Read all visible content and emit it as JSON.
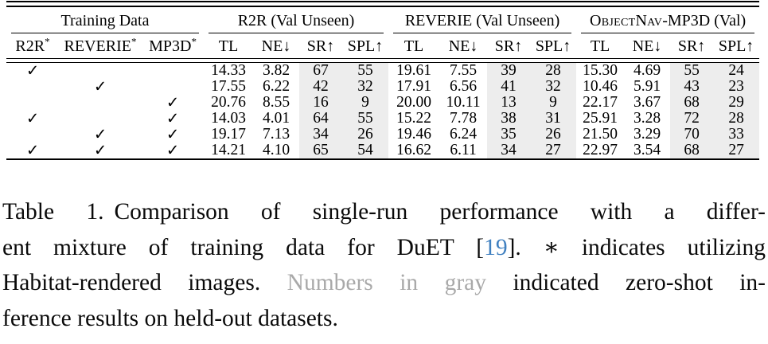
{
  "table": {
    "groups": [
      {
        "label": "Training Data",
        "col_span": 3
      },
      {
        "label": "R2R (Val Unseen)",
        "col_span": 4
      },
      {
        "label": "REVERIE (Val Unseen)",
        "col_span": 4
      },
      {
        "label_smallcaps": "ObjectNav",
        "label_rest": "-MP3D (Val)",
        "col_span": 4
      }
    ],
    "training_columns": [
      {
        "name": "R2R",
        "sup": "*"
      },
      {
        "name": "REVERIE",
        "sup": "*"
      },
      {
        "name": "MP3D",
        "sup": "*"
      }
    ],
    "metric_columns": [
      "TL",
      "NE↓",
      "SR↑",
      "SPL↑"
    ],
    "checkmark": "✓",
    "rows": [
      {
        "training": [
          true,
          false,
          false
        ],
        "sections": [
          {
            "gray": false,
            "values": [
              "14.33",
              "3.82",
              "67",
              "55"
            ]
          },
          {
            "gray": true,
            "values": [
              "19.61",
              "7.55",
              "39",
              "28"
            ]
          },
          {
            "gray": true,
            "values": [
              "15.30",
              "4.69",
              "55",
              "24"
            ]
          }
        ]
      },
      {
        "training": [
          false,
          true,
          false
        ],
        "sections": [
          {
            "gray": true,
            "values": [
              "17.55",
              "6.22",
              "42",
              "32"
            ]
          },
          {
            "gray": false,
            "values": [
              "17.91",
              "6.56",
              "41",
              "32"
            ]
          },
          {
            "gray": true,
            "values": [
              "10.46",
              "5.91",
              "43",
              "23"
            ]
          }
        ]
      },
      {
        "training": [
          false,
          false,
          true
        ],
        "sections": [
          {
            "gray": true,
            "values": [
              "20.76",
              "8.55",
              "16",
              "9"
            ]
          },
          {
            "gray": true,
            "values": [
              "20.00",
              "10.11",
              "13",
              "9"
            ]
          },
          {
            "gray": false,
            "values": [
              "22.17",
              "3.67",
              "68",
              "29"
            ]
          }
        ]
      },
      {
        "training": [
          true,
          false,
          true
        ],
        "sections": [
          {
            "gray": false,
            "values": [
              "14.03",
              "4.01",
              "64",
              "55"
            ]
          },
          {
            "gray": true,
            "values": [
              "15.22",
              "7.78",
              "38",
              "31"
            ]
          },
          {
            "gray": false,
            "values": [
              "25.91",
              "3.28",
              "72",
              "28"
            ]
          }
        ]
      },
      {
        "training": [
          false,
          true,
          true
        ],
        "sections": [
          {
            "gray": true,
            "values": [
              "19.17",
              "7.13",
              "34",
              "26"
            ]
          },
          {
            "gray": false,
            "values": [
              "19.46",
              "6.24",
              "35",
              "26"
            ]
          },
          {
            "gray": false,
            "values": [
              "21.50",
              "3.29",
              "70",
              "33"
            ]
          }
        ]
      },
      {
        "training": [
          true,
          true,
          true
        ],
        "sections": [
          {
            "gray": false,
            "values": [
              "14.21",
              "4.10",
              "65",
              "54"
            ]
          },
          {
            "gray": false,
            "values": [
              "16.62",
              "6.11",
              "34",
              "27"
            ]
          },
          {
            "gray": false,
            "values": [
              "22.97",
              "3.54",
              "68",
              "27"
            ]
          }
        ]
      }
    ]
  },
  "caption": {
    "lines": [
      [
        {
          "t": "Table 1.",
          "style": "label"
        },
        {
          "t": "Comparison of single-run performance with a differ-"
        }
      ],
      [
        {
          "t": "ent mixture of training data for DuET ["
        },
        {
          "t": "19",
          "style": "cite"
        },
        {
          "t": "]. ∗ indicates utilizing"
        }
      ],
      [
        {
          "t": "Habitat-rendered images. "
        },
        {
          "t": "Numbers in gray",
          "style": "gray"
        },
        {
          "t": " indicated zero-shot in-"
        }
      ],
      [
        {
          "t": "ference results on held-out datasets."
        }
      ]
    ]
  },
  "colors": {
    "gray_text": "#a3a3a3",
    "caption_gray": "#a9a9a9",
    "shade": "#ededed",
    "citation": "#4080c0"
  }
}
